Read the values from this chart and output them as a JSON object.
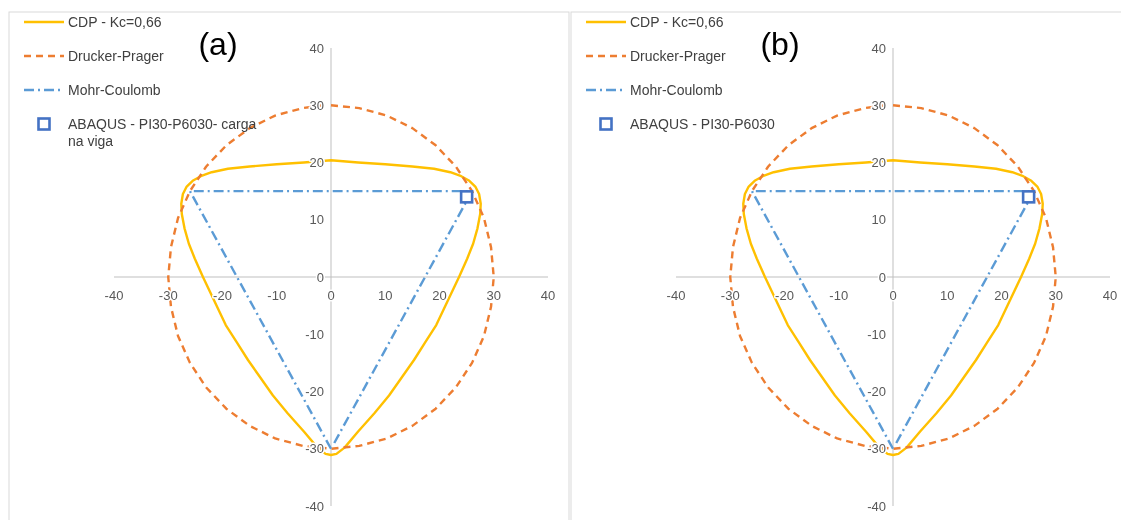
{
  "chart_data": [
    {
      "type": "line",
      "title": "(a)",
      "legend": "top left",
      "marker": "none",
      "xlim": [
        -40,
        40
      ],
      "ylim": [
        -40,
        40
      ],
      "xticks": [
        -40,
        -30,
        -20,
        -10,
        0,
        10,
        20,
        30,
        40
      ],
      "yticks": [
        -40,
        -30,
        -20,
        -10,
        0,
        10,
        20,
        30,
        40
      ],
      "series": [
        {
          "name": "CDP - Kc=0,66",
          "color": "#ffc000",
          "line_style": "solid",
          "x": [
            0,
            5,
            10,
            15,
            19,
            22,
            24,
            25.5,
            26.6,
            27.3,
            27.6,
            27.5,
            27,
            26.2,
            25.1,
            23.6,
            21.5,
            19.4,
            17.3,
            15.3,
            13,
            10.7,
            8,
            5,
            2.5,
            1,
            0,
            -1,
            -2.5,
            -5,
            -8,
            -10.7,
            -13,
            -15.3,
            -17.3,
            -19.4,
            -21.5,
            -23.6,
            -25.1,
            -26.2,
            -27,
            -27.5,
            -27.6,
            -27.3,
            -26.6,
            -25.5,
            -24,
            -22,
            -19,
            -15,
            -10,
            -5,
            0,
            5
          ],
          "values": [
            20.4,
            20,
            19.7,
            19.3,
            18.9,
            18.3,
            17.6,
            16.8,
            15.8,
            14.5,
            12.8,
            11,
            8.5,
            5.8,
            3.2,
            0,
            -4.2,
            -8.4,
            -11.5,
            -14.5,
            -17.6,
            -20.7,
            -23.8,
            -27,
            -29.8,
            -30.9,
            -31.1,
            -30.9,
            -29.8,
            -27,
            -23.8,
            -20.7,
            -17.6,
            -14.5,
            -11.5,
            -8.4,
            -4.2,
            0,
            3.2,
            5.8,
            8.5,
            11,
            12.8,
            14.5,
            15.8,
            16.8,
            17.6,
            18.3,
            18.9,
            19.3,
            19.7,
            20,
            20.4,
            20
          ]
        },
        {
          "name": "Drucker-Prager",
          "color": "#ed7d31",
          "line_style": "dashed",
          "x": [
            0,
            5.2,
            10.3,
            15,
            19.3,
            23,
            26,
            28.2,
            29.5,
            30,
            29.5,
            28.2,
            26,
            23,
            19.3,
            15,
            10.3,
            5.2,
            0,
            -5.2,
            -10.3,
            -15,
            -19.3,
            -23,
            -26,
            -28.2,
            -29.5,
            -30,
            -29.5,
            -28.2,
            -26,
            -23,
            -19.3,
            -15,
            -10.3,
            -5.2,
            -1.5
          ],
          "values": [
            30,
            29.5,
            28.2,
            26,
            23,
            19.3,
            15,
            10.3,
            5.2,
            0,
            -5.2,
            -10.3,
            -15,
            -19.3,
            -23,
            -26,
            -28.2,
            -29.5,
            -30,
            -29.5,
            -28.2,
            -26,
            -23,
            -19.3,
            -15,
            -10.3,
            -5.2,
            0,
            5.2,
            10.3,
            15,
            19.3,
            23,
            26,
            28.2,
            29.5,
            30
          ]
        },
        {
          "name": "Mohr-Coulomb",
          "color": "#5b9bd5",
          "line_style": "dashdot",
          "x": [
            0,
            -26,
            26,
            0.6
          ],
          "values": [
            -30,
            15,
            15,
            -29
          ]
        },
        {
          "name": "ABAQUS - PI30-P6030- carga na viga",
          "type": "scatter",
          "marker": "square",
          "color": "#4472c4",
          "x": [
            25
          ],
          "values": [
            14
          ]
        }
      ]
    },
    {
      "type": "line",
      "title": "(b)",
      "legend": "top left",
      "marker": "none",
      "xlim": [
        -40,
        40
      ],
      "ylim": [
        -40,
        40
      ],
      "xticks": [
        -40,
        -30,
        -20,
        -10,
        0,
        10,
        20,
        30,
        40
      ],
      "yticks": [
        -40,
        -30,
        -20,
        -10,
        0,
        10,
        20,
        30,
        40
      ],
      "series": [
        {
          "name": "CDP - Kc=0,66",
          "color": "#ffc000",
          "line_style": "solid",
          "x": [
            0,
            5,
            10,
            15,
            19,
            22,
            24,
            25.5,
            26.6,
            27.3,
            27.6,
            27.5,
            27,
            26.2,
            25.1,
            23.6,
            21.5,
            19.4,
            17.3,
            15.3,
            13,
            10.7,
            8,
            5,
            2.5,
            1,
            0,
            -1,
            -2.5,
            -5,
            -8,
            -10.7,
            -13,
            -15.3,
            -17.3,
            -19.4,
            -21.5,
            -23.6,
            -25.1,
            -26.2,
            -27,
            -27.5,
            -27.6,
            -27.3,
            -26.6,
            -25.5,
            -24,
            -22,
            -19,
            -15,
            -10,
            -5,
            0,
            5
          ],
          "values": [
            20.4,
            20,
            19.7,
            19.3,
            18.9,
            18.3,
            17.6,
            16.8,
            15.8,
            14.5,
            12.8,
            11,
            8.5,
            5.8,
            3.2,
            0,
            -4.2,
            -8.4,
            -11.5,
            -14.5,
            -17.6,
            -20.7,
            -23.8,
            -27,
            -29.8,
            -30.9,
            -31.1,
            -30.9,
            -29.8,
            -27,
            -23.8,
            -20.7,
            -17.6,
            -14.5,
            -11.5,
            -8.4,
            -4.2,
            0,
            3.2,
            5.8,
            8.5,
            11,
            12.8,
            14.5,
            15.8,
            16.8,
            17.6,
            18.3,
            18.9,
            19.3,
            19.7,
            20,
            20.4,
            20
          ]
        },
        {
          "name": "Drucker-Prager",
          "color": "#ed7d31",
          "line_style": "dashed",
          "x": [
            0,
            5.2,
            10.3,
            15,
            19.3,
            23,
            26,
            28.2,
            29.5,
            30,
            29.5,
            28.2,
            26,
            23,
            19.3,
            15,
            10.3,
            5.2,
            0,
            -5.2,
            -10.3,
            -15,
            -19.3,
            -23,
            -26,
            -28.2,
            -29.5,
            -30,
            -29.5,
            -28.2,
            -26,
            -23,
            -19.3,
            -15,
            -10.3,
            -5.2,
            -1.5
          ],
          "values": [
            30,
            29.5,
            28.2,
            26,
            23,
            19.3,
            15,
            10.3,
            5.2,
            0,
            -5.2,
            -10.3,
            -15,
            -19.3,
            -23,
            -26,
            -28.2,
            -29.5,
            -30,
            -29.5,
            -28.2,
            -26,
            -23,
            -19.3,
            -15,
            -10.3,
            -5.2,
            0,
            5.2,
            10.3,
            15,
            19.3,
            23,
            26,
            28.2,
            29.5,
            30
          ]
        },
        {
          "name": "Mohr-Coulomb",
          "color": "#5b9bd5",
          "line_style": "dashdot",
          "x": [
            0,
            -26,
            26,
            0.6
          ],
          "values": [
            -30,
            15,
            15,
            -29
          ]
        },
        {
          "name": "ABAQUS - PI30-P6030",
          "type": "scatter",
          "marker": "square",
          "color": "#4472c4",
          "x": [
            25
          ],
          "values": [
            14
          ]
        }
      ]
    }
  ]
}
